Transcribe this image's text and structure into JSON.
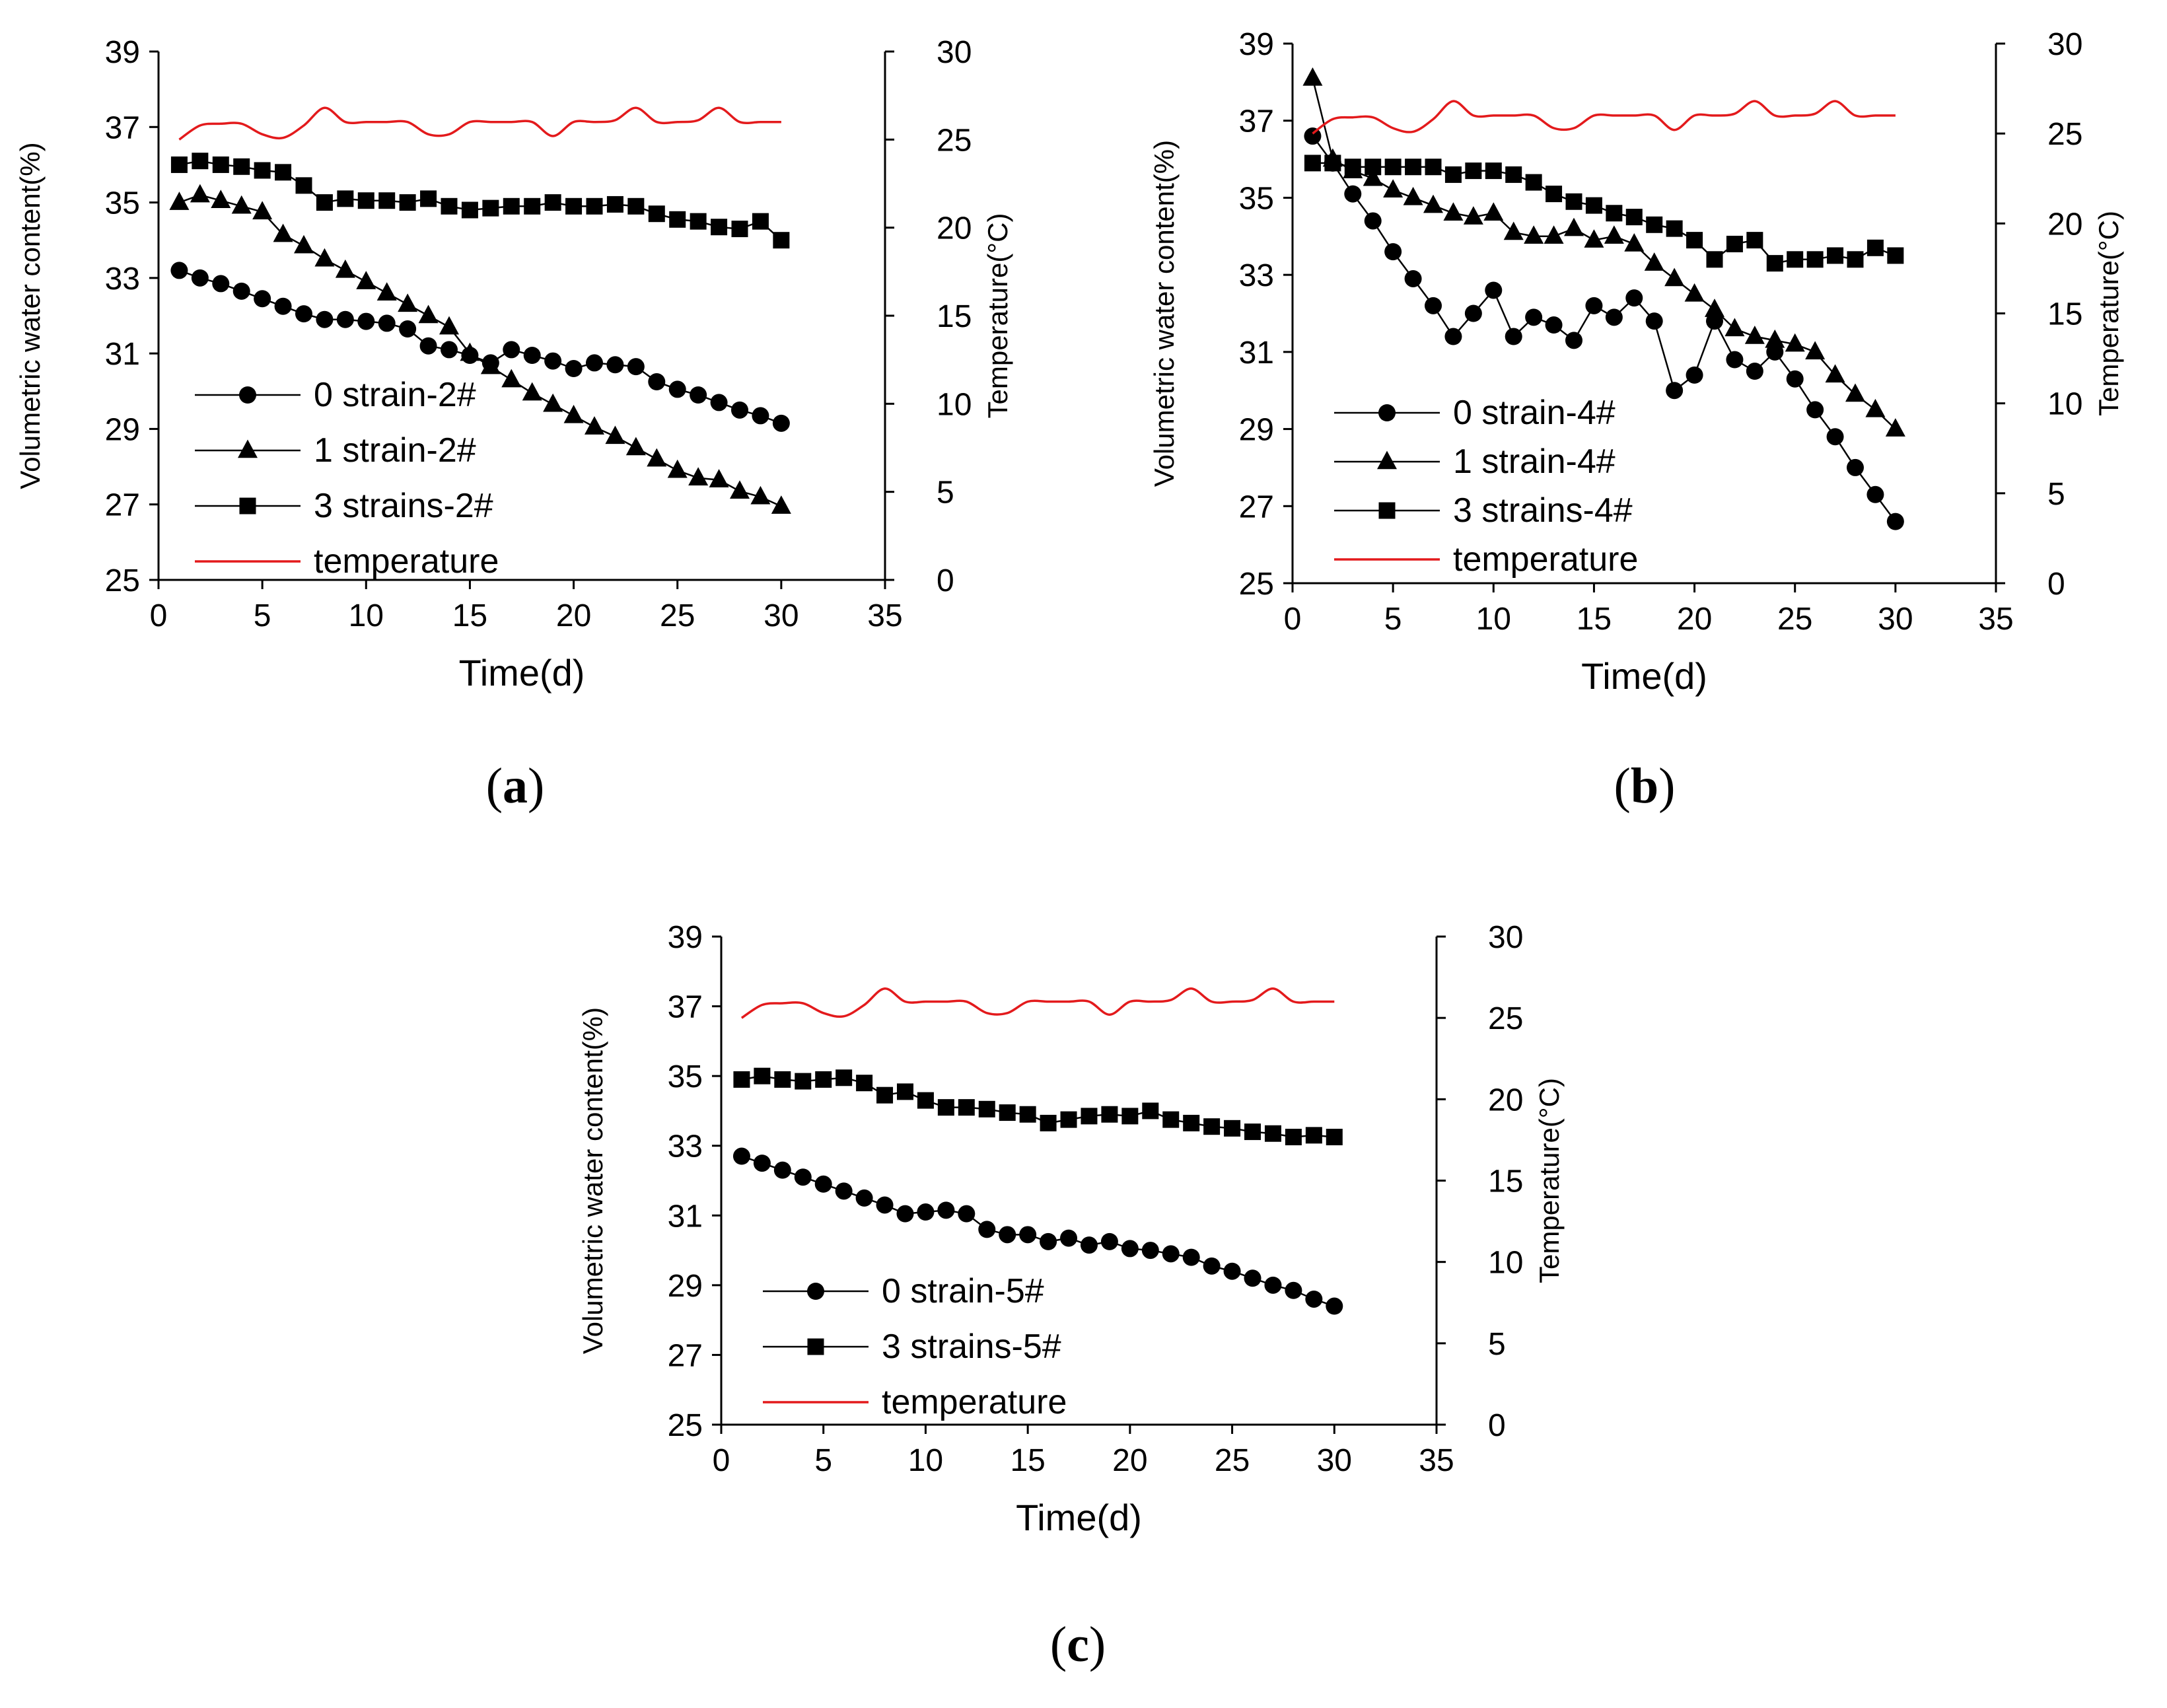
{
  "figure": {
    "panels": [
      "(a)",
      "(b)",
      "(c)"
    ]
  },
  "chart_data": [
    {
      "id": "a",
      "caption": "(a)",
      "type": "line",
      "xlabel": "Time(d)",
      "ylabel": "Volumetric water content(%)",
      "y2label": "Temperature(°C)",
      "xlim": [
        0,
        35
      ],
      "ylim": [
        25,
        39
      ],
      "y2lim": [
        0,
        30
      ],
      "xticks": [
        0,
        5,
        10,
        15,
        20,
        25,
        30,
        35
      ],
      "yticks": [
        25,
        27,
        29,
        31,
        33,
        35,
        37,
        39
      ],
      "y2ticks": [
        0,
        5,
        10,
        15,
        20,
        25,
        30
      ],
      "legend": "left-middle",
      "series": [
        {
          "name": "0 strain-2#",
          "marker": "circle",
          "color": "#000000",
          "x": [
            1,
            2,
            3,
            4,
            5,
            6,
            7,
            8,
            9,
            10,
            11,
            12,
            13,
            14,
            15,
            16,
            17,
            18,
            19,
            20,
            21,
            22,
            23,
            24,
            25,
            26,
            27,
            28,
            29,
            30
          ],
          "values": [
            33.2,
            33.0,
            32.85,
            32.65,
            32.45,
            32.25,
            32.05,
            31.9,
            31.9,
            31.85,
            31.8,
            31.65,
            31.2,
            31.1,
            30.95,
            30.75,
            31.1,
            30.95,
            30.8,
            30.6,
            30.75,
            30.7,
            30.65,
            30.25,
            30.05,
            29.9,
            29.7,
            29.5,
            29.35,
            29.15
          ]
        },
        {
          "name": "1 strain-2#",
          "marker": "triangle",
          "color": "#000000",
          "x": [
            1,
            2,
            3,
            4,
            5,
            6,
            7,
            8,
            9,
            10,
            11,
            12,
            13,
            14,
            15,
            16,
            17,
            18,
            19,
            20,
            21,
            22,
            23,
            24,
            25,
            26,
            27,
            28,
            29,
            30
          ],
          "values": [
            35.0,
            35.2,
            35.05,
            34.9,
            34.75,
            34.15,
            33.85,
            33.5,
            33.2,
            32.9,
            32.6,
            32.3,
            32.0,
            31.7,
            31.0,
            30.65,
            30.3,
            29.95,
            29.65,
            29.35,
            29.05,
            28.8,
            28.5,
            28.2,
            27.9,
            27.7,
            27.65,
            27.35,
            27.2,
            26.95
          ]
        },
        {
          "name": "3 strains-2#",
          "marker": "square",
          "color": "#000000",
          "x": [
            1,
            2,
            3,
            4,
            5,
            6,
            7,
            8,
            9,
            10,
            11,
            12,
            13,
            14,
            15,
            16,
            17,
            18,
            19,
            20,
            21,
            22,
            23,
            24,
            25,
            26,
            27,
            28,
            29,
            30
          ],
          "values": [
            36.0,
            36.1,
            36.0,
            35.95,
            35.85,
            35.8,
            35.45,
            35.0,
            35.1,
            35.05,
            35.05,
            35.0,
            35.1,
            34.9,
            34.8,
            34.85,
            34.9,
            34.9,
            35.0,
            34.9,
            34.9,
            34.95,
            34.9,
            34.7,
            34.55,
            34.5,
            34.35,
            34.3,
            34.5,
            34.0
          ]
        },
        {
          "name": "temperature",
          "axis": "y2",
          "marker": "none",
          "color": "#e31a1c",
          "x": [
            1,
            2,
            3,
            4,
            5,
            6,
            7,
            8,
            9,
            10,
            11,
            12,
            13,
            14,
            15,
            16,
            17,
            18,
            19,
            20,
            21,
            22,
            23,
            24,
            25,
            26,
            27,
            28,
            29,
            30
          ],
          "values": [
            25.0,
            25.8,
            25.9,
            25.9,
            25.3,
            25.1,
            25.8,
            26.8,
            26.0,
            26.0,
            26.0,
            26.0,
            25.3,
            25.3,
            26.0,
            26.0,
            26.0,
            26.0,
            25.2,
            26.0,
            26.0,
            26.1,
            26.8,
            26.0,
            26.0,
            26.1,
            26.8,
            26.0,
            26.0,
            26.0
          ]
        }
      ]
    },
    {
      "id": "b",
      "caption": "(b)",
      "type": "line",
      "xlabel": "Time(d)",
      "ylabel": "Volumetric water content(%)",
      "y2label": "Temperature(°C)",
      "xlim": [
        0,
        35
      ],
      "ylim": [
        25,
        39
      ],
      "y2lim": [
        0,
        30
      ],
      "xticks": [
        0,
        5,
        10,
        15,
        20,
        25,
        30,
        35
      ],
      "yticks": [
        25,
        27,
        29,
        31,
        33,
        35,
        37,
        39
      ],
      "y2ticks": [
        0,
        5,
        10,
        15,
        20,
        25,
        30
      ],
      "legend": "bottom-left",
      "series": [
        {
          "name": "0 strain-4#",
          "marker": "circle",
          "color": "#000000",
          "x": [
            1,
            2,
            3,
            4,
            5,
            6,
            7,
            8,
            9,
            10,
            11,
            12,
            13,
            14,
            15,
            16,
            17,
            18,
            19,
            20,
            21,
            22,
            23,
            24,
            25,
            26,
            27,
            28,
            29,
            30
          ],
          "values": [
            36.6,
            35.9,
            35.1,
            34.4,
            33.6,
            32.9,
            32.2,
            31.4,
            32.0,
            32.6,
            31.4,
            31.9,
            31.7,
            31.3,
            32.2,
            31.9,
            32.4,
            31.8,
            30.0,
            30.4,
            31.8,
            30.8,
            30.5,
            31.0,
            30.3,
            29.5,
            28.8,
            28.0,
            27.3,
            26.6
          ]
        },
        {
          "name": "1 strain-4#",
          "marker": "triangle",
          "color": "#000000",
          "x": [
            1,
            2,
            3,
            4,
            5,
            6,
            7,
            8,
            9,
            10,
            11,
            12,
            13,
            14,
            15,
            16,
            17,
            18,
            19,
            20,
            21,
            22,
            23,
            24,
            25,
            26,
            27,
            28,
            29,
            30
          ],
          "values": [
            38.1,
            36.0,
            35.7,
            35.5,
            35.2,
            35.0,
            34.8,
            34.6,
            34.5,
            34.6,
            34.1,
            34.0,
            34.0,
            34.2,
            33.9,
            34.0,
            33.8,
            33.3,
            32.9,
            32.5,
            32.1,
            31.6,
            31.4,
            31.3,
            31.2,
            31.0,
            30.4,
            29.9,
            29.5,
            29.0
          ]
        },
        {
          "name": "3 strains-4#",
          "marker": "square",
          "color": "#000000",
          "x": [
            1,
            2,
            3,
            4,
            5,
            6,
            7,
            8,
            9,
            10,
            11,
            12,
            13,
            14,
            15,
            16,
            17,
            18,
            19,
            20,
            21,
            22,
            23,
            24,
            25,
            26,
            27,
            28,
            29,
            30
          ],
          "values": [
            35.9,
            35.9,
            35.8,
            35.8,
            35.8,
            35.8,
            35.8,
            35.6,
            35.7,
            35.7,
            35.6,
            35.4,
            35.1,
            34.9,
            34.8,
            34.6,
            34.5,
            34.3,
            34.2,
            33.9,
            33.4,
            33.8,
            33.9,
            33.3,
            33.4,
            33.4,
            33.5,
            33.4,
            33.7,
            33.5
          ]
        },
        {
          "name": "temperature",
          "axis": "y2",
          "marker": "none",
          "color": "#e31a1c",
          "x": [
            1,
            2,
            3,
            4,
            5,
            6,
            7,
            8,
            9,
            10,
            11,
            12,
            13,
            14,
            15,
            16,
            17,
            18,
            19,
            20,
            21,
            22,
            23,
            24,
            25,
            26,
            27,
            28,
            29,
            30
          ],
          "values": [
            25.0,
            25.8,
            25.9,
            25.9,
            25.3,
            25.1,
            25.8,
            26.8,
            26.0,
            26.0,
            26.0,
            26.0,
            25.3,
            25.3,
            26.0,
            26.0,
            26.0,
            26.0,
            25.2,
            26.0,
            26.0,
            26.1,
            26.8,
            26.0,
            26.0,
            26.1,
            26.8,
            26.0,
            26.0,
            26.0
          ]
        }
      ]
    },
    {
      "id": "c",
      "caption": "(c)",
      "type": "line",
      "xlabel": "Time(d)",
      "ylabel": "Volumetric water content(%)",
      "y2label": "Temperature(°C)",
      "xlim": [
        0,
        35
      ],
      "ylim": [
        25,
        39
      ],
      "y2lim": [
        0,
        30
      ],
      "xticks": [
        0,
        5,
        10,
        15,
        20,
        25,
        30,
        35
      ],
      "yticks": [
        25,
        27,
        29,
        31,
        33,
        35,
        37,
        39
      ],
      "y2ticks": [
        0,
        5,
        10,
        15,
        20,
        25,
        30
      ],
      "legend": "bottom-left",
      "series": [
        {
          "name": "0 strain-5#",
          "marker": "circle",
          "color": "#000000",
          "x": [
            1,
            2,
            3,
            4,
            5,
            6,
            7,
            8,
            9,
            10,
            11,
            12,
            13,
            14,
            15,
            16,
            17,
            18,
            19,
            20,
            21,
            22,
            23,
            24,
            25,
            26,
            27,
            28,
            29,
            30
          ],
          "values": [
            32.7,
            32.5,
            32.3,
            32.1,
            31.9,
            31.7,
            31.5,
            31.3,
            31.05,
            31.1,
            31.15,
            31.05,
            30.6,
            30.45,
            30.45,
            30.25,
            30.35,
            30.15,
            30.25,
            30.05,
            30.0,
            29.9,
            29.8,
            29.55,
            29.4,
            29.2,
            29.0,
            28.85,
            28.6,
            28.4
          ]
        },
        {
          "name": "3 strains-5#",
          "marker": "square",
          "color": "#000000",
          "x": [
            1,
            2,
            3,
            4,
            5,
            6,
            7,
            8,
            9,
            10,
            11,
            12,
            13,
            14,
            15,
            16,
            17,
            18,
            19,
            20,
            21,
            22,
            23,
            24,
            25,
            26,
            27,
            28,
            29,
            30
          ],
          "values": [
            34.9,
            35.0,
            34.9,
            34.85,
            34.9,
            34.95,
            34.8,
            34.45,
            34.55,
            34.3,
            34.1,
            34.1,
            34.05,
            33.95,
            33.9,
            33.65,
            33.75,
            33.85,
            33.9,
            33.85,
            34.0,
            33.75,
            33.65,
            33.55,
            33.5,
            33.4,
            33.35,
            33.25,
            33.3,
            33.25
          ]
        },
        {
          "name": "temperature",
          "axis": "y2",
          "marker": "none",
          "color": "#e31a1c",
          "x": [
            1,
            2,
            3,
            4,
            5,
            6,
            7,
            8,
            9,
            10,
            11,
            12,
            13,
            14,
            15,
            16,
            17,
            18,
            19,
            20,
            21,
            22,
            23,
            24,
            25,
            26,
            27,
            28,
            29,
            30
          ],
          "values": [
            25.0,
            25.8,
            25.9,
            25.9,
            25.3,
            25.1,
            25.8,
            26.8,
            26.0,
            26.0,
            26.0,
            26.0,
            25.3,
            25.3,
            26.0,
            26.0,
            26.0,
            26.0,
            25.2,
            26.0,
            26.0,
            26.1,
            26.8,
            26.0,
            26.0,
            26.1,
            26.8,
            26.0,
            26.0,
            26.0
          ]
        }
      ]
    }
  ]
}
